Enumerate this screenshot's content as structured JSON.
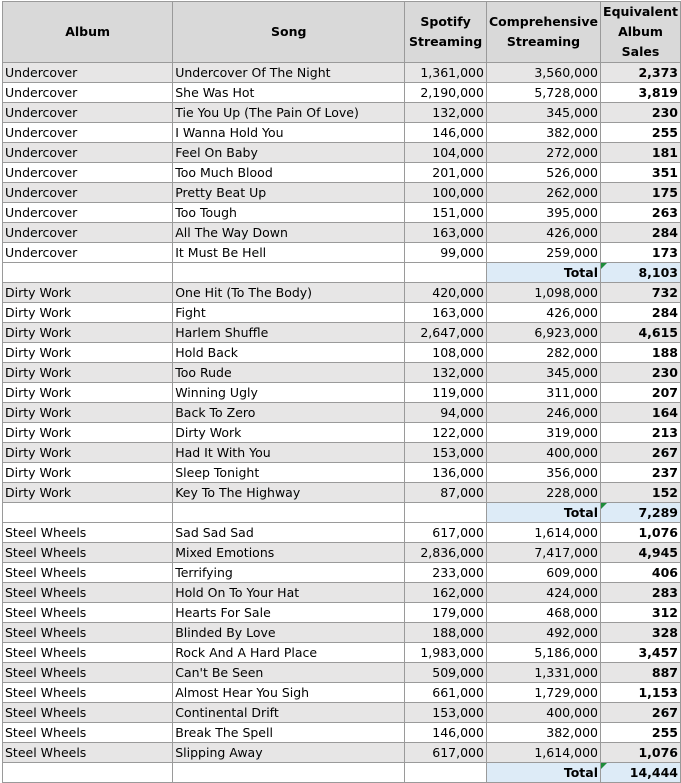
{
  "headers": {
    "album": "Album",
    "song": "Song",
    "spotify": "Spotify Streaming",
    "comprehensive": "Comprehensive Streaming",
    "equivalent": "Equivalent Album Sales"
  },
  "total_label": "Total",
  "groups": [
    {
      "rows": [
        [
          "Undercover",
          "Undercover Of The Night",
          "1,361,000",
          "3,560,000",
          "2,373"
        ],
        [
          "Undercover",
          "She Was Hot",
          "2,190,000",
          "5,728,000",
          "3,819"
        ],
        [
          "Undercover",
          "Tie You Up (The Pain Of Love)",
          "132,000",
          "345,000",
          "230"
        ],
        [
          "Undercover",
          "I Wanna Hold You",
          "146,000",
          "382,000",
          "255"
        ],
        [
          "Undercover",
          "Feel On Baby",
          "104,000",
          "272,000",
          "181"
        ],
        [
          "Undercover",
          "Too Much Blood",
          "201,000",
          "526,000",
          "351"
        ],
        [
          "Undercover",
          "Pretty Beat Up",
          "100,000",
          "262,000",
          "175"
        ],
        [
          "Undercover",
          "Too Tough",
          "151,000",
          "395,000",
          "263"
        ],
        [
          "Undercover",
          "All The Way Down",
          "163,000",
          "426,000",
          "284"
        ],
        [
          "Undercover",
          "It Must Be Hell",
          "99,000",
          "259,000",
          "173"
        ]
      ],
      "total": "8,103"
    },
    {
      "rows": [
        [
          "Dirty Work",
          "One Hit (To The Body)",
          "420,000",
          "1,098,000",
          "732"
        ],
        [
          "Dirty Work",
          "Fight",
          "163,000",
          "426,000",
          "284"
        ],
        [
          "Dirty Work",
          "Harlem Shuffle",
          "2,647,000",
          "6,923,000",
          "4,615"
        ],
        [
          "Dirty Work",
          "Hold Back",
          "108,000",
          "282,000",
          "188"
        ],
        [
          "Dirty Work",
          "Too Rude",
          "132,000",
          "345,000",
          "230"
        ],
        [
          "Dirty Work",
          "Winning Ugly",
          "119,000",
          "311,000",
          "207"
        ],
        [
          "Dirty Work",
          "Back To Zero",
          "94,000",
          "246,000",
          "164"
        ],
        [
          "Dirty Work",
          "Dirty Work",
          "122,000",
          "319,000",
          "213"
        ],
        [
          "Dirty Work",
          "Had It With You",
          "153,000",
          "400,000",
          "267"
        ],
        [
          "Dirty Work",
          "Sleep Tonight",
          "136,000",
          "356,000",
          "237"
        ],
        [
          "Dirty Work",
          "Key To The Highway",
          "87,000",
          "228,000",
          "152"
        ]
      ],
      "total": "7,289"
    },
    {
      "rows": [
        [
          "Steel Wheels",
          "Sad Sad Sad",
          "617,000",
          "1,614,000",
          "1,076"
        ],
        [
          "Steel Wheels",
          "Mixed Emotions",
          "2,836,000",
          "7,417,000",
          "4,945"
        ],
        [
          "Steel Wheels",
          "Terrifying",
          "233,000",
          "609,000",
          "406"
        ],
        [
          "Steel Wheels",
          "Hold On To Your Hat",
          "162,000",
          "424,000",
          "283"
        ],
        [
          "Steel Wheels",
          "Hearts For Sale",
          "179,000",
          "468,000",
          "312"
        ],
        [
          "Steel Wheels",
          "Blinded By Love",
          "188,000",
          "492,000",
          "328"
        ],
        [
          "Steel Wheels",
          "Rock And A Hard Place",
          "1,983,000",
          "5,186,000",
          "3,457"
        ],
        [
          "Steel Wheels",
          "Can't Be Seen",
          "509,000",
          "1,331,000",
          "887"
        ],
        [
          "Steel Wheels",
          "Almost Hear You Sigh",
          "661,000",
          "1,729,000",
          "1,153"
        ],
        [
          "Steel Wheels",
          "Continental Drift",
          "153,000",
          "400,000",
          "267"
        ],
        [
          "Steel Wheels",
          "Break The Spell",
          "146,000",
          "382,000",
          "255"
        ],
        [
          "Steel Wheels",
          "Slipping Away",
          "617,000",
          "1,614,000",
          "1,076"
        ]
      ],
      "total": "14,444"
    }
  ]
}
